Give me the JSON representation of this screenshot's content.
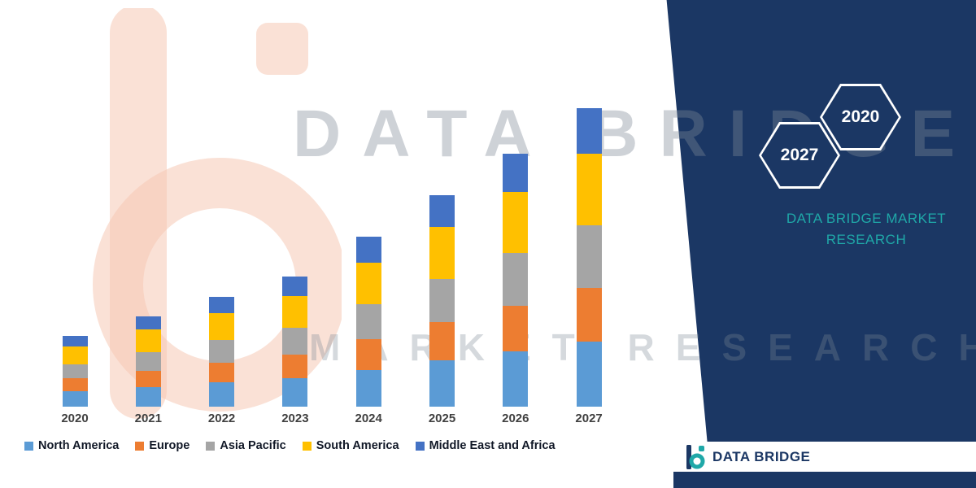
{
  "watermark": {
    "line1": "DATA BRIDGE",
    "line2": "MARKET RESEARCH"
  },
  "panel": {
    "background_color": "#1B3764",
    "hexagons": [
      {
        "label": "2027"
      },
      {
        "label": "2020"
      }
    ],
    "brand_text_line1": "DATA BRIDGE MARKET",
    "brand_text_line2": "RESEARCH",
    "brand_text_color": "#1FA8A8"
  },
  "footer": {
    "logo_text": "DATA BRIDGE"
  },
  "chart_data": {
    "type": "bar",
    "stacked": true,
    "title": "",
    "xlabel": "",
    "ylabel": "",
    "grid": false,
    "legend_position": "bottom",
    "categories": [
      "2020",
      "2021",
      "2022",
      "2023",
      "2024",
      "2025",
      "2026",
      "2027"
    ],
    "series": [
      {
        "name": "North America",
        "color": "#5B9BD5",
        "values": [
          0.22,
          0.28,
          0.34,
          0.4,
          0.52,
          0.65,
          0.78,
          0.92
        ]
      },
      {
        "name": "Europe",
        "color": "#ED7D31",
        "values": [
          0.18,
          0.23,
          0.28,
          0.33,
          0.43,
          0.54,
          0.65,
          0.76
        ]
      },
      {
        "name": "Asia Pacific",
        "color": "#A5A5A5",
        "values": [
          0.2,
          0.26,
          0.32,
          0.38,
          0.5,
          0.62,
          0.74,
          0.88
        ]
      },
      {
        "name": "South America",
        "color": "#FFC000",
        "values": [
          0.25,
          0.32,
          0.38,
          0.45,
          0.59,
          0.73,
          0.87,
          1.02
        ]
      },
      {
        "name": "Middle East and Africa",
        "color": "#4472C4",
        "values": [
          0.15,
          0.19,
          0.23,
          0.28,
          0.36,
          0.45,
          0.54,
          0.64
        ]
      }
    ],
    "ylim": [
      0,
      4.5
    ]
  }
}
